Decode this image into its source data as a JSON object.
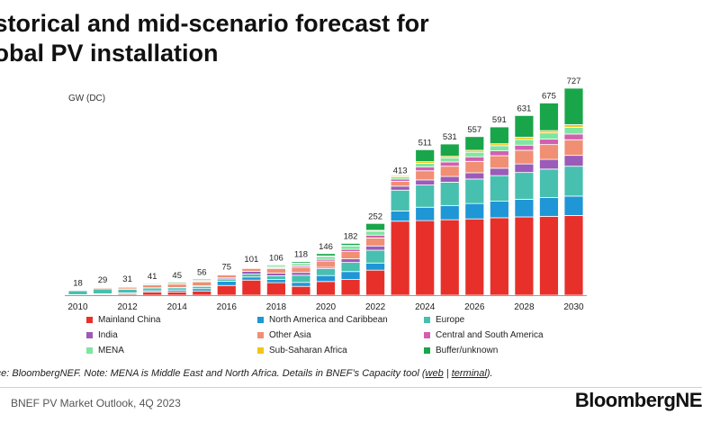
{
  "header": {
    "title": "istorical and mid-scenario forecast for\nlobal PV installation"
  },
  "chart_data": {
    "type": "bar",
    "stacked": true,
    "title": "istorical and mid-scenario forecast for lobal PV installation",
    "ylabel": "GW (DC)",
    "ylim": [
      0,
      727
    ],
    "grid": false,
    "legend_position": "bottom",
    "categories": [
      "2010",
      "2011",
      "2012",
      "2013",
      "2014",
      "2015",
      "2016",
      "2017",
      "2018",
      "2019",
      "2020",
      "2021",
      "2022",
      "2023",
      "2024",
      "2025",
      "2026",
      "2027",
      "2028",
      "2029",
      "2030"
    ],
    "x_tick_labels": [
      "2010",
      "",
      "2012",
      "",
      "2014",
      "",
      "2016",
      "",
      "2018",
      "",
      "2020",
      "",
      "2022",
      "",
      "2024",
      "",
      "2026",
      "",
      "2028",
      "",
      "2030"
    ],
    "totals": [
      18,
      29,
      31,
      41,
      45,
      56,
      75,
      101,
      106,
      118,
      146,
      182,
      252,
      413,
      511,
      531,
      557,
      591,
      631,
      675,
      727
    ],
    "series": [
      {
        "name": "Mainland China",
        "color": "#e8302a",
        "values": [
          1,
          3,
          4,
          11,
          11,
          15,
          34,
          53,
          44,
          31,
          48,
          55,
          88,
          260,
          262,
          265,
          268,
          272,
          275,
          277,
          280
        ]
      },
      {
        "name": "North America and Caribbean",
        "color": "#1f96d6",
        "values": [
          1,
          2,
          4,
          5,
          7,
          8,
          15,
          11,
          11,
          14,
          21,
          28,
          25,
          36,
          47,
          50,
          54,
          58,
          62,
          66,
          68
        ]
      },
      {
        "name": "Europe",
        "color": "#47c0b0",
        "values": [
          14,
          17,
          13,
          9,
          8,
          8,
          8,
          10,
          13,
          25,
          24,
          32,
          45,
          73,
          78,
          82,
          86,
          90,
          94,
          100,
          105
        ]
      },
      {
        "name": "India",
        "color": "#9b5bb8",
        "values": [
          0,
          1,
          1,
          1,
          1,
          2,
          4,
          10,
          10,
          10,
          5,
          13,
          15,
          14,
          18,
          20,
          22,
          26,
          30,
          34,
          38
        ]
      },
      {
        "name": "Other Asia",
        "color": "#f08f74",
        "values": [
          1,
          4,
          6,
          10,
          12,
          14,
          10,
          10,
          16,
          18,
          22,
          25,
          28,
          17,
          32,
          36,
          40,
          44,
          48,
          52,
          55
        ]
      },
      {
        "name": "Central and South America",
        "color": "#d25fb0",
        "values": [
          0,
          0,
          0,
          0,
          0,
          1,
          1,
          2,
          3,
          5,
          6,
          8,
          10,
          8,
          14,
          15,
          16,
          17,
          18,
          19,
          20
        ]
      },
      {
        "name": "MENA",
        "color": "#7ee6a0",
        "values": [
          0,
          1,
          1,
          2,
          2,
          3,
          1,
          2,
          4,
          8,
          10,
          12,
          14,
          8,
          12,
          14,
          16,
          18,
          20,
          22,
          24
        ]
      },
      {
        "name": "Sub-Saharan Africa",
        "color": "#f3c418",
        "values": [
          0,
          0,
          0,
          0,
          0,
          1,
          1,
          1,
          1,
          2,
          2,
          2,
          3,
          4,
          6,
          6,
          7,
          7,
          8,
          8,
          9
        ]
      },
      {
        "name": "Buffer/unknown",
        "color": "#19a64a",
        "values": [
          1,
          1,
          2,
          3,
          4,
          4,
          1,
          2,
          4,
          5,
          8,
          7,
          24,
          -7,
          42,
          43,
          48,
          59,
          76,
          97,
          128
        ]
      }
    ]
  },
  "footer": {
    "source_text": "rce: BloombergNEF. Note: MENA is Middle East and North Africa. Details in BNEF’s Capacity tool (",
    "link_web": "web",
    "link_separator": " | ",
    "link_terminal": "terminal",
    "source_end": ").",
    "report_name": "BNEF PV Market Outlook, 4Q 2023",
    "logo_text": "BloombergNE"
  }
}
